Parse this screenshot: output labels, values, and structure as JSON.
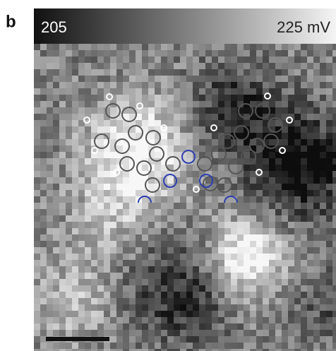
{
  "panel_label": "b",
  "colorbar": {
    "min_label": "205",
    "max_label": "225 mV"
  }
}
